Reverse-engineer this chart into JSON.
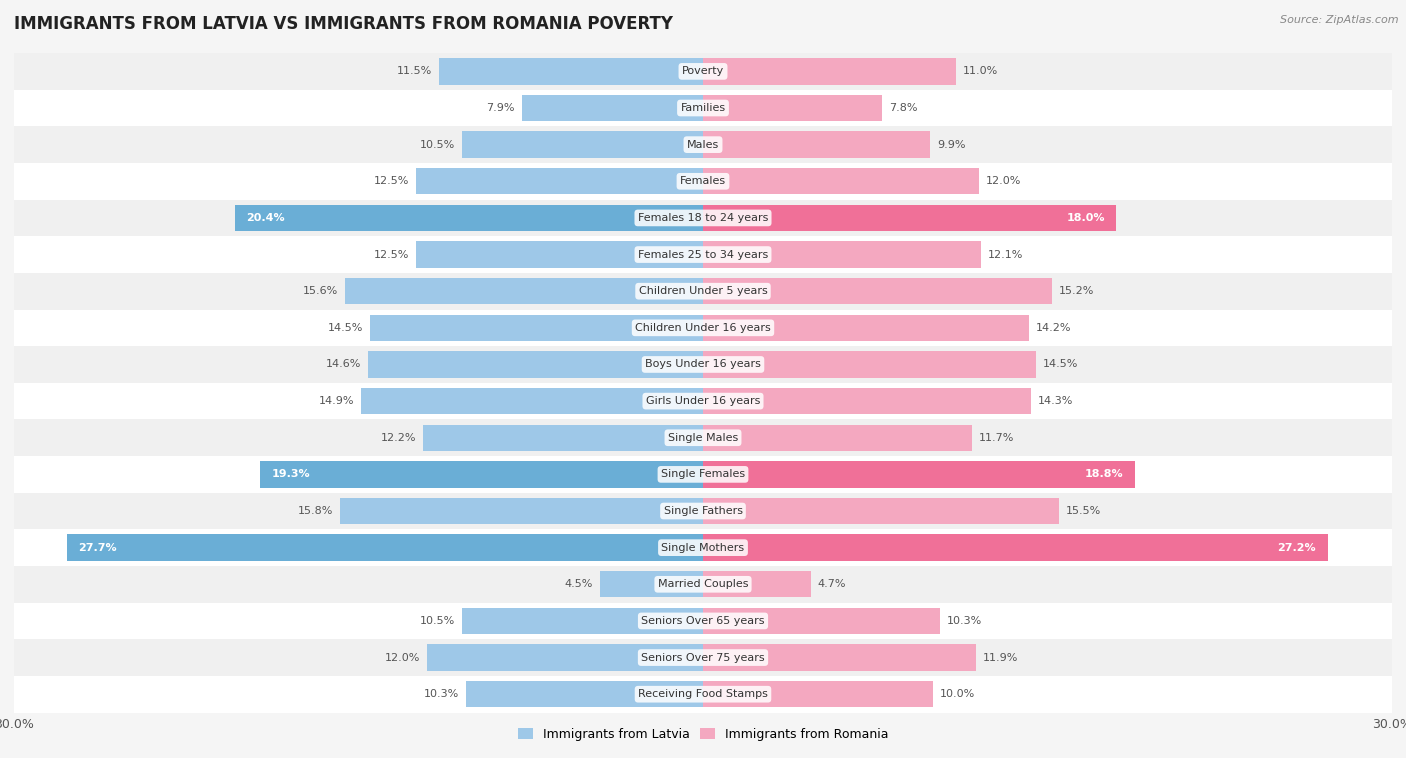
{
  "title": "IMMIGRANTS FROM LATVIA VS IMMIGRANTS FROM ROMANIA POVERTY",
  "source": "Source: ZipAtlas.com",
  "categories": [
    "Poverty",
    "Families",
    "Males",
    "Females",
    "Females 18 to 24 years",
    "Females 25 to 34 years",
    "Children Under 5 years",
    "Children Under 16 years",
    "Boys Under 16 years",
    "Girls Under 16 years",
    "Single Males",
    "Single Females",
    "Single Fathers",
    "Single Mothers",
    "Married Couples",
    "Seniors Over 65 years",
    "Seniors Over 75 years",
    "Receiving Food Stamps"
  ],
  "latvia_values": [
    11.5,
    7.9,
    10.5,
    12.5,
    20.4,
    12.5,
    15.6,
    14.5,
    14.6,
    14.9,
    12.2,
    19.3,
    15.8,
    27.7,
    4.5,
    10.5,
    12.0,
    10.3
  ],
  "romania_values": [
    11.0,
    7.8,
    9.9,
    12.0,
    18.0,
    12.1,
    15.2,
    14.2,
    14.5,
    14.3,
    11.7,
    18.8,
    15.5,
    27.2,
    4.7,
    10.3,
    11.9,
    10.0
  ],
  "latvia_color": "#9ec8e8",
  "romania_color": "#f4a8c0",
  "latvia_highlight_color": "#6aaed6",
  "romania_highlight_color": "#f07098",
  "highlight_rows": [
    4,
    11,
    13
  ],
  "xlim": 30.0,
  "background_color": "#f5f5f5",
  "row_bg_colors": [
    "#f0f0f0",
    "#ffffff"
  ],
  "bar_height": 0.72,
  "label_fontsize": 8.0,
  "cat_fontsize": 8.0,
  "title_fontsize": 12,
  "legend_labels": [
    "Immigrants from Latvia",
    "Immigrants from Romania"
  ]
}
